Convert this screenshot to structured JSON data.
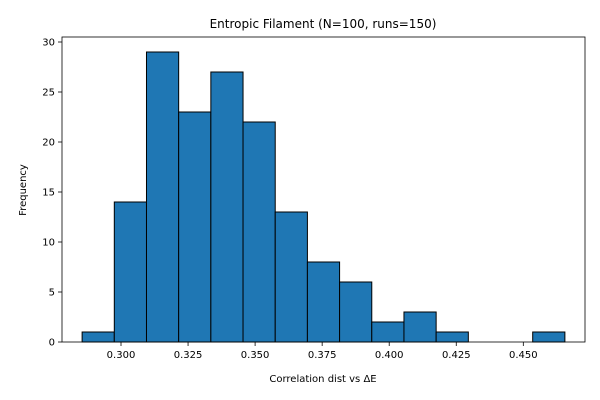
{
  "chart_data": {
    "type": "bar",
    "title": "Entropic Filament (N=100, runs=150)",
    "xlabel": "Correlation dist vs ΔE",
    "ylabel": "Frequency",
    "bin_edges": [
      0.2855,
      0.2975,
      0.3095,
      0.3215,
      0.3335,
      0.3455,
      0.3575,
      0.3695,
      0.3815,
      0.3935,
      0.4055,
      0.4175,
      0.4295,
      0.4415,
      0.4535,
      0.4655
    ],
    "values": [
      1,
      14,
      29,
      23,
      27,
      22,
      13,
      8,
      6,
      2,
      3,
      1,
      0,
      0,
      1
    ],
    "xlim": [
      0.278,
      0.473
    ],
    "ylim": [
      0,
      30.5
    ],
    "xticks": [
      "0.300",
      "0.325",
      "0.350",
      "0.375",
      "0.400",
      "0.425",
      "0.450"
    ],
    "xtick_values": [
      0.3,
      0.325,
      0.35,
      0.375,
      0.4,
      0.425,
      0.45
    ],
    "yticks": [
      "0",
      "5",
      "10",
      "15",
      "20",
      "25",
      "30"
    ],
    "ytick_values": [
      0,
      5,
      10,
      15,
      20,
      25,
      30
    ],
    "bar_color": "#1f77b4",
    "edge_color": "#000000",
    "grid": false,
    "legend": "none"
  }
}
